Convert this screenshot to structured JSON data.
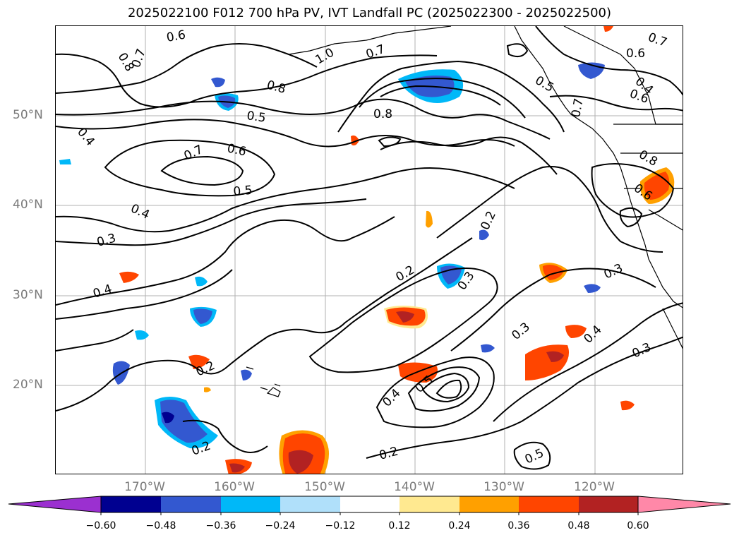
{
  "title": "2025022100 F012 700 hPa PV, IVT Landfall PC (2025022300 - 2025022500)",
  "lon_labels": [
    "170°W",
    "160°W",
    "150°W",
    "140°W",
    "130°W",
    "120°W"
  ],
  "lat_labels": [
    "50°N",
    "40°N",
    "30°N",
    "20°N"
  ],
  "contour_labels": [
    "0.6",
    "0.8",
    "0.7",
    "1.0",
    "0.7",
    "0.6",
    "0.7",
    "0.8",
    "0.5",
    "0.5",
    "0.4",
    "0.8",
    "0.6",
    "0.4",
    "0.7",
    "0.6",
    "0.5",
    "0.8",
    "0.6",
    "0.4",
    "0.3",
    "0.2",
    "0.4",
    "0.2",
    "0.3",
    "0.3",
    "0.3",
    "0.2",
    "0.4",
    "0.5",
    "0.4",
    "0.3",
    "0.2",
    "0.2",
    "0.7",
    "0.5"
  ],
  "colorbar": {
    "ticks": [
      "−0.60",
      "−0.48",
      "−0.36",
      "−0.24",
      "−0.12",
      "0.12",
      "0.24",
      "0.36",
      "0.48",
      "0.60"
    ],
    "colors": [
      "#9b30d0",
      "#000090",
      "#3358d0",
      "#00b8f8",
      "#b0e0fa",
      "#ffffff",
      "#ffe990",
      "#ffa000",
      "#ff4500",
      "#b22222",
      "#ff88a8"
    ]
  },
  "fill_colors": {
    "neg_light": "#00b8f8",
    "neg_mid": "#3358d0",
    "neg_dark": "#000090",
    "pos_light": "#ffe990",
    "pos_orange": "#ffa000",
    "pos_red": "#ff4500",
    "pos_dark": "#b22222"
  },
  "map": {
    "extent_lon": [
      -180,
      -110
    ],
    "extent_lat": [
      10,
      60
    ],
    "grid_lon": [
      -170,
      -160,
      -150,
      -140,
      -130,
      -120
    ],
    "grid_lat": [
      50,
      40,
      30,
      20
    ]
  }
}
